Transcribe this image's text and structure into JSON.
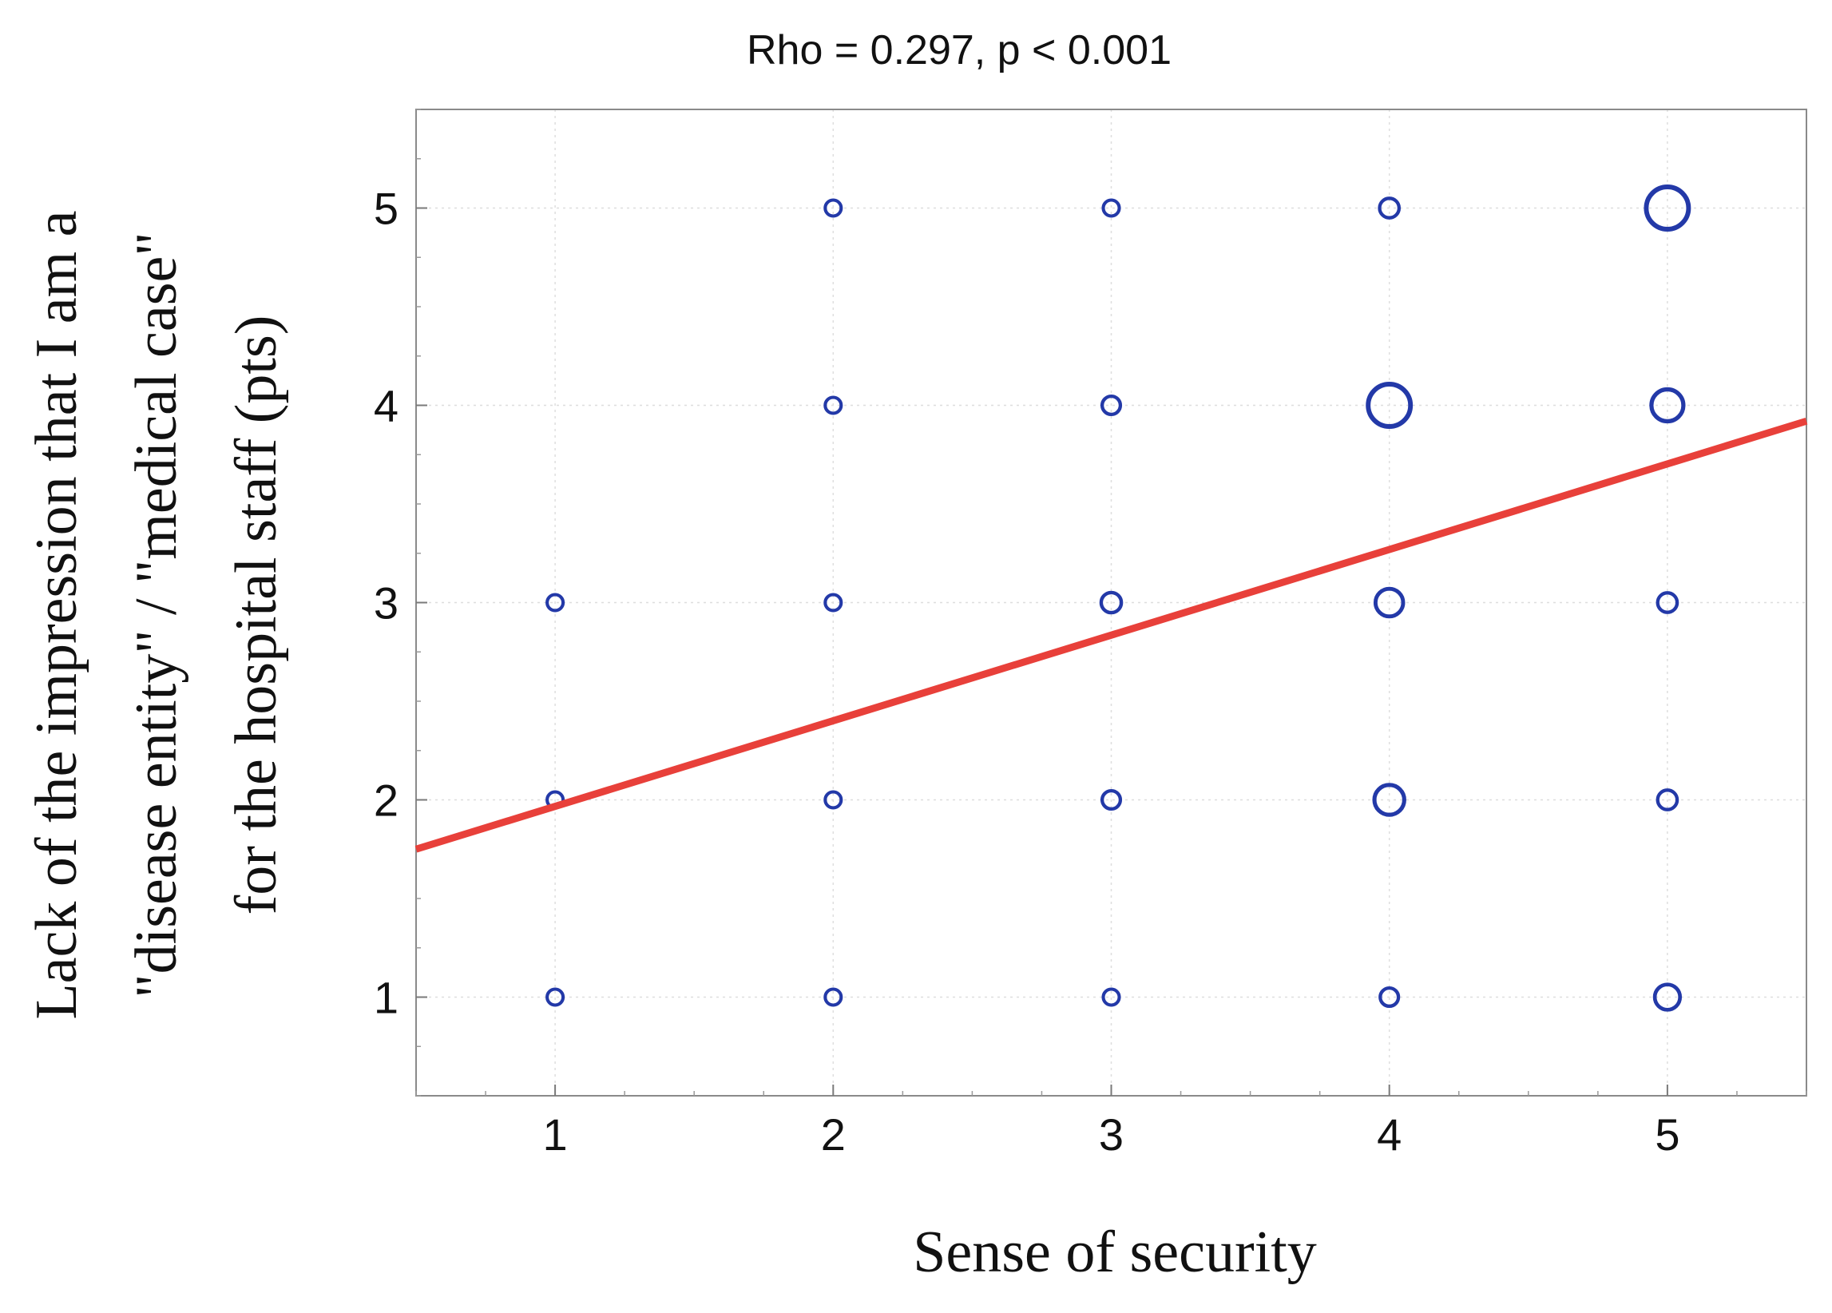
{
  "chart_data": {
    "type": "scatter",
    "title": "Rho = 0.297,   p < 0.001",
    "xlabel": "Sense of security",
    "ylabel_lines": [
      "Lack of the impression that I am a",
      "\"disease entity\" / \"medical case\"",
      "for the hospital staff (pts)"
    ],
    "xlim": [
      0.5,
      5.5
    ],
    "ylim": [
      0.5,
      5.5
    ],
    "x_ticks": [
      "1",
      "2",
      "3",
      "4",
      "5"
    ],
    "y_ticks": [
      "1",
      "2",
      "3",
      "4",
      "5"
    ],
    "grid": true,
    "points": [
      {
        "x": 1,
        "y": 1,
        "weight": 1
      },
      {
        "x": 1,
        "y": 2,
        "weight": 1
      },
      {
        "x": 1,
        "y": 3,
        "weight": 1
      },
      {
        "x": 2,
        "y": 1,
        "weight": 1
      },
      {
        "x": 2,
        "y": 2,
        "weight": 1
      },
      {
        "x": 2,
        "y": 3,
        "weight": 1
      },
      {
        "x": 2,
        "y": 4,
        "weight": 1
      },
      {
        "x": 2,
        "y": 5,
        "weight": 1
      },
      {
        "x": 3,
        "y": 1,
        "weight": 1
      },
      {
        "x": 3,
        "y": 2,
        "weight": 1.3
      },
      {
        "x": 3,
        "y": 3,
        "weight": 1.6
      },
      {
        "x": 3,
        "y": 4,
        "weight": 1.3
      },
      {
        "x": 3,
        "y": 5,
        "weight": 1
      },
      {
        "x": 4,
        "y": 1,
        "weight": 1.3
      },
      {
        "x": 4,
        "y": 2,
        "weight": 3.5
      },
      {
        "x": 4,
        "y": 3,
        "weight": 3
      },
      {
        "x": 4,
        "y": 4,
        "weight": 7
      },
      {
        "x": 4,
        "y": 5,
        "weight": 1.5
      },
      {
        "x": 5,
        "y": 1,
        "weight": 2.5
      },
      {
        "x": 5,
        "y": 2,
        "weight": 1.5
      },
      {
        "x": 5,
        "y": 3,
        "weight": 1.5
      },
      {
        "x": 5,
        "y": 4,
        "weight": 4
      },
      {
        "x": 5,
        "y": 5,
        "weight": 7
      }
    ],
    "trendline": {
      "x": [
        0.5,
        5.5
      ],
      "y": [
        1.75,
        3.92
      ]
    },
    "colors": {
      "points": "#2339a8",
      "trendline": "#e8403a"
    }
  }
}
